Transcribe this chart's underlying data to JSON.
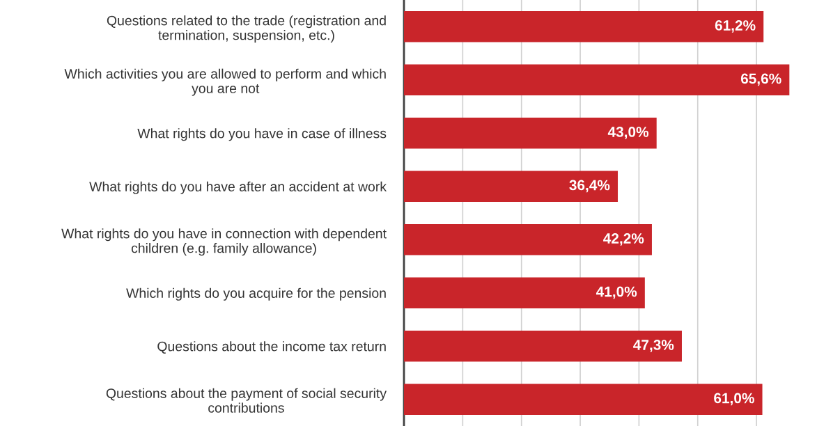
{
  "chart_data": {
    "type": "bar",
    "orientation": "horizontal",
    "categories": [
      "Questions related to the trade (registration and\ntermination, suspension, etc.)",
      "Which activities you are allowed to perform and which\nyou are not",
      "What rights do you have in case of illness",
      "What rights do you have after an accident at work",
      "What rights do you have in connection with dependent\nchildren (e.g. family allowance)",
      "Which rights do you acquire for the pension",
      "Questions about the income tax return",
      "Questions about the payment of social security\ncontributions"
    ],
    "values": [
      61.2,
      65.6,
      43.0,
      36.4,
      42.2,
      41.0,
      47.3,
      61.0
    ],
    "value_labels": [
      "61,2%",
      "65,6%",
      "43,0%",
      "36,4%",
      "42,2%",
      "41,0%",
      "47,3%",
      "61,0%"
    ],
    "color": "#c9252a",
    "xticks": [
      {
        "value": 0,
        "label": null
      },
      {
        "value": 10,
        "label": null
      },
      {
        "value": 20,
        "label": null
      },
      {
        "value": 30,
        "label": null
      },
      {
        "value": 40,
        "label": null
      },
      {
        "value": 50,
        "label": null
      },
      {
        "value": 60,
        "label": null
      }
    ],
    "grid": "x",
    "tick_labels": "y"
  }
}
